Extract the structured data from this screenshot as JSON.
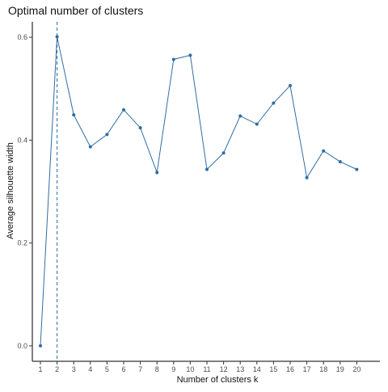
{
  "chart_data": {
    "type": "line",
    "title": "Optimal number of clusters",
    "xlabel": "Number of clusters k",
    "ylabel": "Average silhouette width",
    "categories": [
      "1",
      "2",
      "3",
      "4",
      "5",
      "6",
      "7",
      "8",
      "9",
      "10",
      "11",
      "12",
      "13",
      "14",
      "15",
      "16",
      "17",
      "18",
      "19",
      "20"
    ],
    "series": [
      {
        "values": [
          0.0,
          0.601,
          0.449,
          0.387,
          0.411,
          0.459,
          0.424,
          0.337,
          0.557,
          0.565,
          0.343,
          0.375,
          0.447,
          0.431,
          0.472,
          0.506,
          0.327,
          0.379,
          0.358,
          0.343
        ],
        "color": "#2E6DA4"
      }
    ],
    "optimal_k": 2,
    "optimal_line_color": "#2E6DA4",
    "ylim": [
      -0.03,
      0.63
    ],
    "y_ticks": [
      0.0,
      0.2,
      0.4,
      0.6
    ],
    "y_tick_labels": [
      "0.0",
      "0.2",
      "0.4",
      "0.6"
    ],
    "grid": false,
    "line_color": "#2E6DA4",
    "point_color": "#2E6DA4",
    "axis_color": "#000000"
  }
}
